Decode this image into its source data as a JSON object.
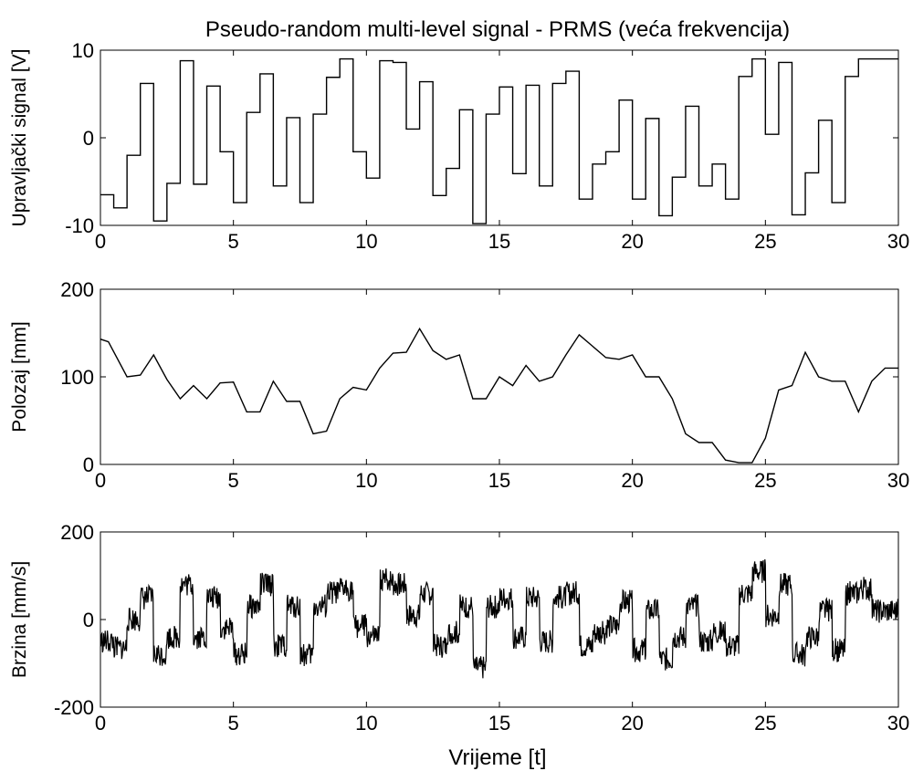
{
  "figure": {
    "title": "Pseudo-random multi-level signal - PRMS (veća frekvencija)",
    "xlabel": "Vrijeme [t]"
  },
  "colors": {
    "line": "#000000",
    "axes": "#000000",
    "background": "#ffffff"
  },
  "chart_data": [
    {
      "type": "line",
      "ylabel": "Upravljački signal [V]",
      "xlim": [
        0,
        30
      ],
      "ylim": [
        -10,
        10
      ],
      "xticks": [
        0,
        5,
        10,
        15,
        20,
        25,
        30
      ],
      "yticks": [
        -10,
        0,
        10
      ],
      "grid": false,
      "step": true,
      "series": [
        {
          "x": [
            0,
            0.5,
            1,
            1.5,
            2,
            2.5,
            3,
            3.5,
            4,
            4.5,
            5,
            5.5,
            6,
            6.5,
            7,
            7.5,
            8,
            8.5,
            9,
            9.5,
            10,
            10.5,
            11,
            11.5,
            12,
            12.5,
            13,
            13.5,
            14,
            14.5,
            15,
            15.5,
            16,
            16.5,
            17,
            17.5,
            18,
            18.5,
            19,
            19.5,
            20,
            20.5,
            21,
            21.5,
            22,
            22.5,
            23,
            23.5,
            24,
            24.5,
            25,
            25.5,
            26,
            26.5,
            27,
            27.5,
            28,
            28.5,
            29,
            29.5,
            30
          ],
          "y": [
            -6.5,
            -8,
            -2,
            6.2,
            -9.5,
            -5.2,
            8.8,
            -5.3,
            5.9,
            -1.6,
            -7.4,
            2.9,
            7.3,
            -5.5,
            2.3,
            -7.4,
            2.7,
            6.9,
            9.0,
            -1.6,
            -4.6,
            8.8,
            8.6,
            1.0,
            6.4,
            -6.6,
            -3.5,
            3.2,
            -9.8,
            2.7,
            5.8,
            -4.1,
            6.0,
            -5.5,
            6.2,
            7.6,
            -7.0,
            -3.0,
            -1.6,
            4.3,
            -7.0,
            2.2,
            -8.9,
            -4.5,
            3.6,
            -5.5,
            -3.0,
            -7.0,
            7.0,
            9.0,
            0.4,
            8.6,
            -8.8,
            -4.0,
            2.0,
            -7.4,
            7.0,
            9.0,
            9.0,
            9.0,
            9.0
          ]
        }
      ]
    },
    {
      "type": "line",
      "ylabel": "Polozaj [mm]",
      "xlim": [
        0,
        30
      ],
      "ylim": [
        0,
        200
      ],
      "xticks": [
        0,
        5,
        10,
        15,
        20,
        25,
        30
      ],
      "yticks": [
        0,
        100,
        200
      ],
      "grid": false,
      "series": [
        {
          "x": [
            0,
            0.3,
            1,
            1.5,
            2,
            2.5,
            3,
            3.5,
            4,
            4.5,
            5,
            5.5,
            6,
            6.5,
            7,
            7.5,
            8,
            8.5,
            9,
            9.5,
            10,
            10.5,
            11,
            11.5,
            12,
            12.5,
            13,
            13.5,
            14,
            14.5,
            15,
            15.5,
            16,
            16.5,
            17,
            17.5,
            18,
            18.5,
            19,
            19.5,
            20,
            20.5,
            21,
            21.5,
            22,
            22.5,
            23,
            23.5,
            24,
            24.5,
            25,
            25.5,
            26,
            26.5,
            27,
            27.5,
            28,
            28.5,
            29,
            29.5,
            30
          ],
          "y": [
            143,
            140,
            100,
            102,
            125,
            97,
            75,
            90,
            75,
            93,
            94,
            60,
            60,
            95,
            72,
            72,
            35,
            38,
            75,
            88,
            85,
            110,
            127,
            128,
            155,
            130,
            120,
            125,
            75,
            75,
            100,
            90,
            113,
            95,
            100,
            125,
            148,
            135,
            122,
            120,
            125,
            100,
            100,
            75,
            35,
            25,
            25,
            5,
            2,
            2,
            30,
            85,
            90,
            128,
            100,
            95,
            95,
            60,
            95,
            110,
            110
          ]
        }
      ]
    },
    {
      "type": "line",
      "ylabel": "Brzina [mm/s]",
      "xlim": [
        0,
        30
      ],
      "ylim": [
        -200,
        200
      ],
      "xticks": [
        0,
        5,
        10,
        15,
        20,
        25,
        30
      ],
      "yticks": [
        -200,
        0,
        200
      ],
      "grid": false,
      "noisy": true,
      "series": [
        {
          "x": [
            0,
            0.5,
            1,
            1.5,
            2,
            2.5,
            3,
            3.5,
            4,
            4.5,
            5,
            5.5,
            6,
            6.5,
            7,
            7.5,
            8,
            8.5,
            9,
            9.5,
            10,
            10.5,
            11,
            11.5,
            12,
            12.5,
            13,
            13.5,
            14,
            14.5,
            15,
            15.5,
            16,
            16.5,
            17,
            17.5,
            18,
            18.5,
            19,
            19.5,
            20,
            20.5,
            21,
            21.5,
            22,
            22.5,
            23,
            23.5,
            24,
            24.5,
            25,
            25.5,
            26,
            26.5,
            27,
            27.5,
            28,
            28.5,
            29,
            29.5,
            30
          ],
          "y": [
            -50,
            -65,
            0,
            50,
            -80,
            -40,
            80,
            -40,
            50,
            -20,
            -80,
            30,
            80,
            -60,
            30,
            -80,
            30,
            60,
            70,
            -15,
            -40,
            90,
            80,
            10,
            60,
            -60,
            -30,
            30,
            -110,
            30,
            50,
            -40,
            50,
            -50,
            50,
            60,
            -60,
            -30,
            -15,
            40,
            -70,
            20,
            -90,
            -40,
            30,
            -50,
            -30,
            -60,
            60,
            110,
            10,
            80,
            -80,
            -40,
            20,
            -70,
            60,
            70,
            20,
            20,
            20
          ]
        }
      ]
    }
  ]
}
